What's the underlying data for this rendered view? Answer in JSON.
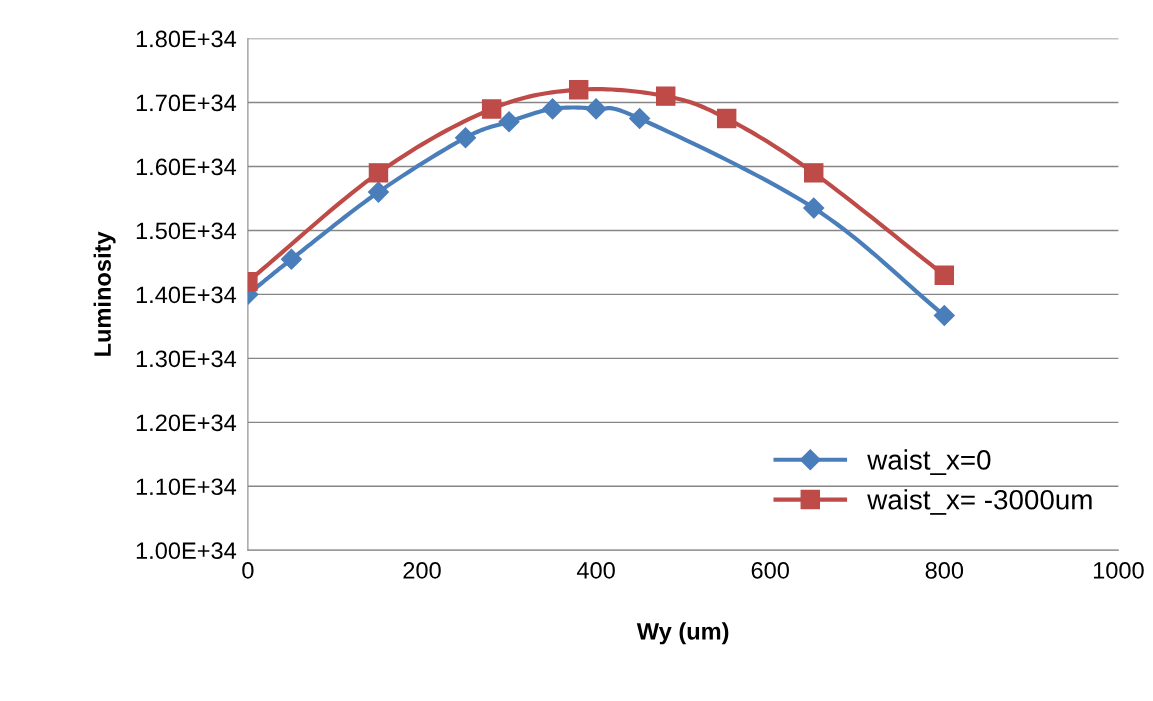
{
  "chart_data": {
    "type": "line",
    "xlabel": "Wy (um)",
    "ylabel": "Luminosity",
    "xlim": [
      0,
      1000
    ],
    "xticks": [
      0,
      200,
      400,
      600,
      800,
      1000
    ],
    "ylim": [
      1e+34,
      1.8e+34
    ],
    "yticks": [
      {
        "value": 1e+34,
        "label": "1.00E+34"
      },
      {
        "value": 1.1e+34,
        "label": "1.10E+34"
      },
      {
        "value": 1.2e+34,
        "label": "1.20E+34"
      },
      {
        "value": 1.3e+34,
        "label": "1.30E+34"
      },
      {
        "value": 1.4e+34,
        "label": "1.40E+34"
      },
      {
        "value": 1.5e+34,
        "label": "1.50E+34"
      },
      {
        "value": 1.6e+34,
        "label": "1.60E+34"
      },
      {
        "value": 1.7e+34,
        "label": "1.70E+34"
      },
      {
        "value": 1.8e+34,
        "label": "1.80E+34"
      }
    ],
    "grid": "y",
    "legend": "bottom right",
    "series": [
      {
        "name": "waist_x=0",
        "color": "#4a7ebb",
        "marker": "diamond",
        "x": [
          0,
          50,
          150,
          250,
          300,
          350,
          400,
          450,
          650,
          800
        ],
        "values": [
          1.4e+34,
          1.455e+34,
          1.56e+34,
          1.645e+34,
          1.67e+34,
          1.69e+34,
          1.69e+34,
          1.675e+34,
          1.535e+34,
          1.367e+34
        ]
      },
      {
        "name": "waist_x= -3000um",
        "color": "#be4b48",
        "marker": "square",
        "x": [
          0,
          150,
          280,
          380,
          480,
          550,
          650,
          800
        ],
        "values": [
          1.42e+34,
          1.59e+34,
          1.69e+34,
          1.72e+34,
          1.71e+34,
          1.675e+34,
          1.59e+34,
          1.43e+34
        ]
      }
    ]
  }
}
